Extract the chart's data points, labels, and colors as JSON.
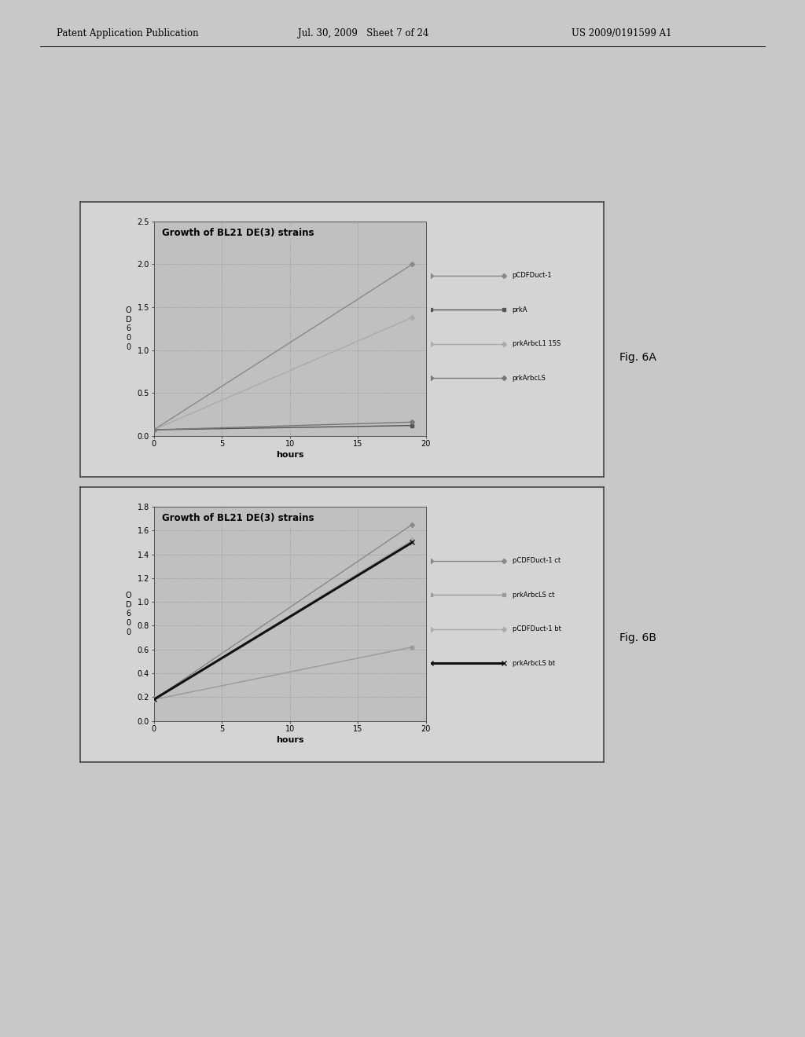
{
  "page_bg": "#c8c8c8",
  "chart_outer_bg": "#d4d4d4",
  "chart_plot_bg": "#c0c0c0",
  "header": {
    "left": "Patent Application Publication",
    "center": "Jul. 30, 2009   Sheet 7 of 24",
    "right": "US 2009/0191599 A1"
  },
  "chart_A": {
    "title": "Growth of BL21 DE(3) strains",
    "xlabel": "hours",
    "ylabel_lines": [
      "O",
      "D",
      "6",
      "0",
      "0"
    ],
    "xlim": [
      0,
      20
    ],
    "ylim": [
      0,
      2.5
    ],
    "yticks": [
      0,
      0.5,
      1.0,
      1.5,
      2.0,
      2.5
    ],
    "xticks": [
      0,
      5,
      10,
      15,
      20
    ],
    "series": [
      {
        "label": "pCDFDuct-1",
        "x": [
          0,
          19
        ],
        "y": [
          0.07,
          2.0
        ],
        "color": "#888888",
        "marker": "D",
        "markersize": 3,
        "linewidth": 1.0
      },
      {
        "label": "prkA",
        "x": [
          0,
          19
        ],
        "y": [
          0.07,
          0.12
        ],
        "color": "#555555",
        "marker": "s",
        "markersize": 3,
        "linewidth": 1.0
      },
      {
        "label": "prkArbcL1 15S",
        "x": [
          0,
          19
        ],
        "y": [
          0.07,
          1.38
        ],
        "color": "#aaaaaa",
        "marker": "D",
        "markersize": 3,
        "linewidth": 1.0
      },
      {
        "label": "prkArbcLS",
        "x": [
          0,
          19
        ],
        "y": [
          0.07,
          0.16
        ],
        "color": "#777777",
        "marker": "D",
        "markersize": 3,
        "linewidth": 1.0
      }
    ],
    "fig_label": "Fig. 6A"
  },
  "chart_B": {
    "title": "Growth of BL21 DE(3) strains",
    "xlabel": "hours",
    "ylabel_lines": [
      "O",
      "D",
      "6",
      "0",
      "0"
    ],
    "xlim": [
      0,
      20
    ],
    "ylim": [
      0,
      1.8
    ],
    "yticks": [
      0,
      0.2,
      0.4,
      0.6,
      0.8,
      1.0,
      1.2,
      1.4,
      1.6,
      1.8
    ],
    "xticks": [
      0,
      5,
      10,
      15,
      20
    ],
    "series": [
      {
        "label": "pCDFDuct-1 ct",
        "x": [
          0,
          19
        ],
        "y": [
          0.18,
          1.65
        ],
        "color": "#888888",
        "marker": "D",
        "markersize": 3,
        "linewidth": 1.0
      },
      {
        "label": "prkArbcLS ct",
        "x": [
          0,
          19
        ],
        "y": [
          0.18,
          0.62
        ],
        "color": "#999999",
        "marker": "s",
        "markersize": 3,
        "linewidth": 1.0
      },
      {
        "label": "pCDFDuct-1 bt",
        "x": [
          0,
          19
        ],
        "y": [
          0.18,
          1.52
        ],
        "color": "#aaaaaa",
        "marker": "D",
        "markersize": 3,
        "linewidth": 1.0
      },
      {
        "label": "prkArbcLS bt",
        "x": [
          0,
          19
        ],
        "y": [
          0.18,
          1.5
        ],
        "color": "#111111",
        "marker": "x",
        "markersize": 5,
        "linewidth": 2.2
      }
    ],
    "fig_label": "Fig. 6B"
  }
}
